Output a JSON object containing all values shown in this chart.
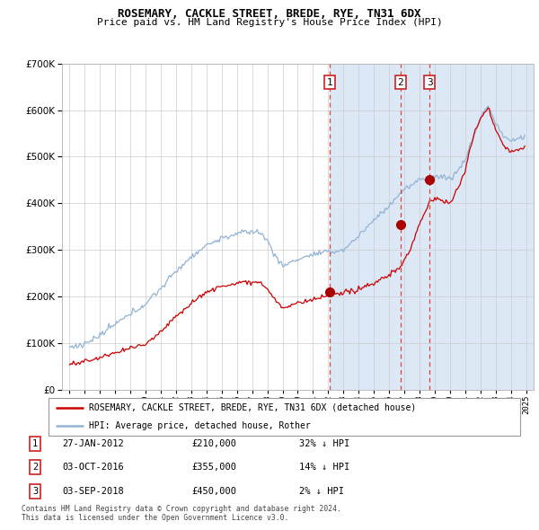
{
  "title": "ROSEMARY, CACKLE STREET, BREDE, RYE, TN31 6DX",
  "subtitle": "Price paid vs. HM Land Registry's House Price Index (HPI)",
  "legend_entry1": "ROSEMARY, CACKLE STREET, BREDE, RYE, TN31 6DX (detached house)",
  "legend_entry2": "HPI: Average price, detached house, Rother",
  "footer1": "Contains HM Land Registry data © Crown copyright and database right 2024.",
  "footer2": "This data is licensed under the Open Government Licence v3.0.",
  "sale1_date": "27-JAN-2012",
  "sale1_price_str": "£210,000",
  "sale1_price": 210000,
  "sale1_hpi": "32% ↓ HPI",
  "sale2_date": "03-OCT-2016",
  "sale2_price_str": "£355,000",
  "sale2_price": 355000,
  "sale2_hpi": "14% ↓ HPI",
  "sale3_date": "03-SEP-2018",
  "sale3_price_str": "£450,000",
  "sale3_price": 450000,
  "sale3_hpi": "2% ↓ HPI",
  "hpi_color": "#92b4d4",
  "price_color": "#cc0000",
  "sale_dot_color": "#aa0000",
  "dashed_line_color": "#dd4444",
  "background_shaded": "#dce8f5",
  "ylim": [
    0,
    700000
  ],
  "yticks": [
    0,
    100000,
    200000,
    300000,
    400000,
    500000,
    600000,
    700000
  ],
  "sale1_x": 2012.08,
  "sale2_x": 2016.75,
  "sale3_x": 2018.67
}
